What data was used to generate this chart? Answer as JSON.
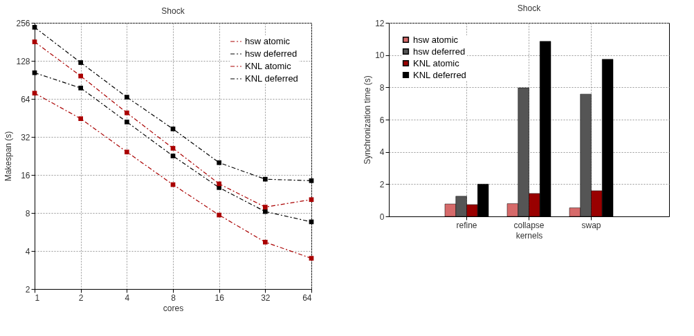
{
  "chart_data": [
    {
      "type": "line",
      "title": "Shock",
      "xlabel": "cores",
      "ylabel": "Makespan (s)",
      "log": "xy",
      "x": [
        1,
        2,
        4,
        8,
        16,
        32,
        64
      ],
      "series": [
        {
          "name": "hsw atomic",
          "color": "#aa0000",
          "values": [
            71,
            44.6,
            24.3,
            13.4,
            7.7,
            4.7,
            3.5
          ]
        },
        {
          "name": "hsw deferred",
          "color": "#000000",
          "values": [
            103,
            78,
            42,
            22.6,
            12.7,
            8.2,
            6.8
          ]
        },
        {
          "name": "KNL atomic",
          "color": "#aa0000",
          "values": [
            181,
            97,
            49.6,
            26,
            13.6,
            8.9,
            10.2
          ]
        },
        {
          "name": "KNL deferred",
          "color": "#000000",
          "values": [
            236,
            124,
            66,
            37,
            20,
            14.8,
            14.4
          ]
        }
      ],
      "xlim": [
        1,
        64
      ],
      "xticks": [
        1,
        2,
        4,
        8,
        16,
        32,
        64
      ],
      "ylim": [
        2,
        256
      ],
      "yticks": [
        2,
        4,
        8,
        16,
        32,
        64,
        128,
        256
      ],
      "grid": true,
      "legend": "top right",
      "marker": "square",
      "line_style": "dashed"
    },
    {
      "type": "bar",
      "title": "Shock",
      "xlabel": "kernels",
      "ylabel": "Synchronization time (s)",
      "categories": [
        "refine",
        "collapse",
        "swap"
      ],
      "series": [
        {
          "name": "hsw atomic",
          "color": "#d66a6a",
          "values": [
            0.77,
            0.79,
            0.53
          ]
        },
        {
          "name": "hsw deferred",
          "color": "#555555",
          "values": [
            1.25,
            7.97,
            7.58
          ]
        },
        {
          "name": "KNL atomic",
          "color": "#990000",
          "values": [
            0.73,
            1.42,
            1.59
          ]
        },
        {
          "name": "KNL deferred",
          "color": "#000000",
          "values": [
            2.0,
            10.85,
            9.74
          ]
        }
      ],
      "ylim": [
        0,
        12
      ],
      "yticks": [
        0,
        2,
        4,
        6,
        8,
        10,
        12
      ],
      "grid": true,
      "legend": "top left"
    }
  ]
}
